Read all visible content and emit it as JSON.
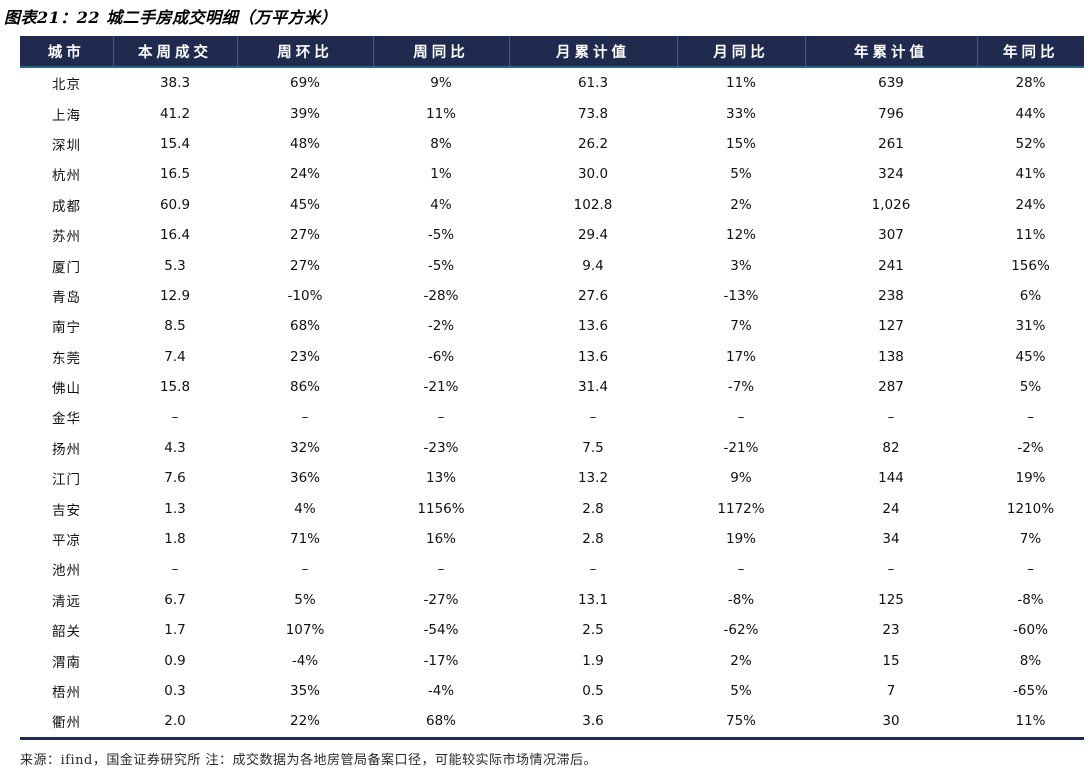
{
  "header": {
    "title": "图表21：22 城二手房成交明细（万平方米）"
  },
  "footer": {
    "source_note": "来源：ifind，国金证券研究所 注：成交数据为各地房管局备案口径，可能较实际市场情况滞后。"
  },
  "colors": {
    "header_bg": "#1f2a4e",
    "header_text": "#ffffff",
    "header_divider": "#46587d",
    "accent_line": "#2d6586",
    "body_text": "#111111"
  },
  "chart_data": {
    "type": "table",
    "title": "图表21：22 城二手房成交明细（万平方米）",
    "unit": "万平方米",
    "columns": [
      "城市",
      "本周成交",
      "周环比",
      "周同比",
      "月累计值",
      "月同比",
      "年累计值",
      "年同比"
    ],
    "rows": [
      [
        "北京",
        "38.3",
        "69%",
        "9%",
        "61.3",
        "11%",
        "639",
        "28%"
      ],
      [
        "上海",
        "41.2",
        "39%",
        "11%",
        "73.8",
        "33%",
        "796",
        "44%"
      ],
      [
        "深圳",
        "15.4",
        "48%",
        "8%",
        "26.2",
        "15%",
        "261",
        "52%"
      ],
      [
        "杭州",
        "16.5",
        "24%",
        "1%",
        "30.0",
        "5%",
        "324",
        "41%"
      ],
      [
        "成都",
        "60.9",
        "45%",
        "4%",
        "102.8",
        "2%",
        "1,026",
        "24%"
      ],
      [
        "苏州",
        "16.4",
        "27%",
        "-5%",
        "29.4",
        "12%",
        "307",
        "11%"
      ],
      [
        "厦门",
        "5.3",
        "27%",
        "-5%",
        "9.4",
        "3%",
        "241",
        "156%"
      ],
      [
        "青岛",
        "12.9",
        "-10%",
        "-28%",
        "27.6",
        "-13%",
        "238",
        "6%"
      ],
      [
        "南宁",
        "8.5",
        "68%",
        "-2%",
        "13.6",
        "7%",
        "127",
        "31%"
      ],
      [
        "东莞",
        "7.4",
        "23%",
        "-6%",
        "13.6",
        "17%",
        "138",
        "45%"
      ],
      [
        "佛山",
        "15.8",
        "86%",
        "-21%",
        "31.4",
        "-7%",
        "287",
        "5%"
      ],
      [
        "金华",
        "–",
        "–",
        "–",
        "–",
        "–",
        "–",
        "–"
      ],
      [
        "扬州",
        "4.3",
        "32%",
        "-23%",
        "7.5",
        "-21%",
        "82",
        "-2%"
      ],
      [
        "江门",
        "7.6",
        "36%",
        "13%",
        "13.2",
        "9%",
        "144",
        "19%"
      ],
      [
        "吉安",
        "1.3",
        "4%",
        "1156%",
        "2.8",
        "1172%",
        "24",
        "1210%"
      ],
      [
        "平凉",
        "1.8",
        "71%",
        "16%",
        "2.8",
        "19%",
        "34",
        "7%"
      ],
      [
        "池州",
        "–",
        "–",
        "–",
        "–",
        "–",
        "–",
        "–"
      ],
      [
        "清远",
        "6.7",
        "5%",
        "-27%",
        "13.1",
        "-8%",
        "125",
        "-8%"
      ],
      [
        "韶关",
        "1.7",
        "107%",
        "-54%",
        "2.5",
        "-62%",
        "23",
        "-60%"
      ],
      [
        "渭南",
        "0.9",
        "-4%",
        "-17%",
        "1.9",
        "2%",
        "15",
        "8%"
      ],
      [
        "梧州",
        "0.3",
        "35%",
        "-4%",
        "0.5",
        "5%",
        "7",
        "-65%"
      ],
      [
        "衢州",
        "2.0",
        "22%",
        "68%",
        "3.6",
        "75%",
        "30",
        "11%"
      ]
    ],
    "footnote": "来源：ifind，国金证券研究所 注：成交数据为各地房管局备案口径，可能较实际市场情况滞后。"
  }
}
